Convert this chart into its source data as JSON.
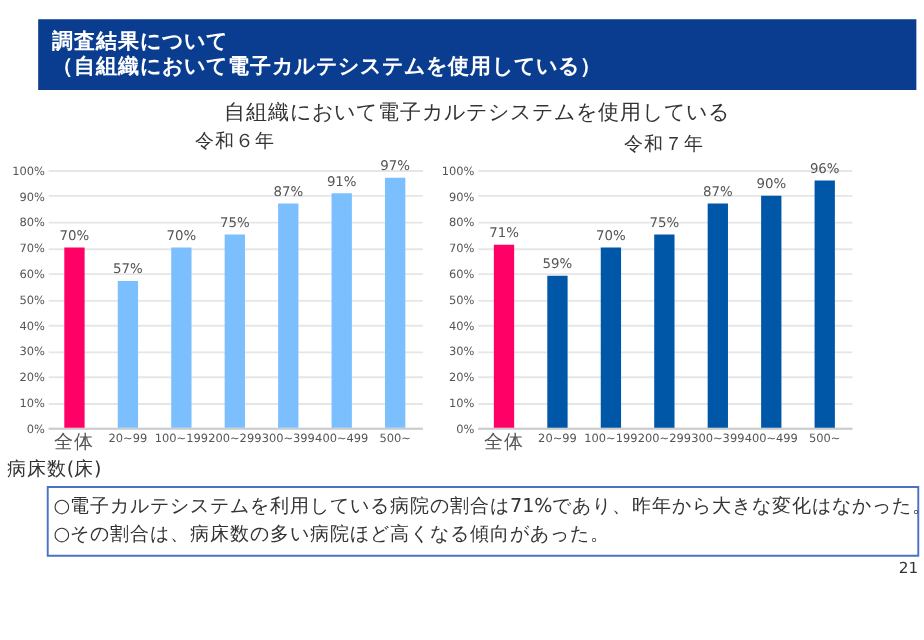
{
  "chart_data": [
    {
      "type": "bar",
      "title": "令和６年",
      "annotations": [
        "調査結果について",
        "（自組織において電子カルテシステムを使用している）",
        "自組織において電子カルテシステムを使用している",
        "○電子カルテシステムを利用している病院の割合は71%であり、昨年から大きな変化はなかった。",
        "○その割合は、病床数の多い病院ほど高くなる傾向があった。",
        "21"
      ],
      "xlabel": "病床数(床)",
      "categories": [
        "全体",
        "20~99",
        "100~199",
        "200~299",
        "300~399",
        "400~499",
        "500~"
      ],
      "values": [
        70,
        57,
        70,
        75,
        87,
        91,
        97
      ],
      "colors": [
        "#ff0066",
        "#7bbfff",
        "#7bbfff",
        "#7bbfff",
        "#7bbfff",
        "#7bbfff",
        "#7bbfff"
      ],
      "value_labels": [
        "70%",
        "57%",
        "70%",
        "75%",
        "87%",
        "91%",
        "97%"
      ],
      "ylim": [
        0,
        100
      ],
      "yticks": [
        {
          "value": 0,
          "label": "0%"
        },
        {
          "value": 10,
          "label": "10%"
        },
        {
          "value": 20,
          "label": "20%"
        },
        {
          "value": 30,
          "label": "30%"
        },
        {
          "value": 40,
          "label": "40%"
        },
        {
          "value": 50,
          "label": "50%"
        },
        {
          "value": 60,
          "label": "60%"
        },
        {
          "value": 70,
          "label": "70%"
        },
        {
          "value": 80,
          "label": "80%"
        },
        {
          "value": 90,
          "label": "90%"
        },
        {
          "value": 100,
          "label": "100%"
        }
      ],
      "grid": "y",
      "legend": false
    },
    {
      "type": "bar",
      "title": "令和７年",
      "categories": [
        "全体",
        "20~99",
        "100~199",
        "200~299",
        "300~399",
        "400~499",
        "500~"
      ],
      "values": [
        71,
        59,
        70,
        75,
        87,
        90,
        96
      ],
      "colors": [
        "#ff0066",
        "#0057a8",
        "#0057a8",
        "#0057a8",
        "#0057a8",
        "#0057a8",
        "#0057a8"
      ],
      "value_labels": [
        "71%",
        "59%",
        "70%",
        "75%",
        "87%",
        "90%",
        "96%"
      ],
      "ylim": [
        0,
        100
      ],
      "yticks": [
        {
          "value": 0,
          "label": "0%"
        },
        {
          "value": 10,
          "label": "10%"
        },
        {
          "value": 20,
          "label": "20%"
        },
        {
          "value": 30,
          "label": "30%"
        },
        {
          "value": 40,
          "label": "40%"
        },
        {
          "value": 50,
          "label": "50%"
        },
        {
          "value": 60,
          "label": "60%"
        },
        {
          "value": 70,
          "label": "70%"
        },
        {
          "value": 80,
          "label": "80%"
        },
        {
          "value": 90,
          "label": "90%"
        },
        {
          "value": 100,
          "label": "100%"
        }
      ],
      "grid": "y",
      "legend": false
    }
  ]
}
